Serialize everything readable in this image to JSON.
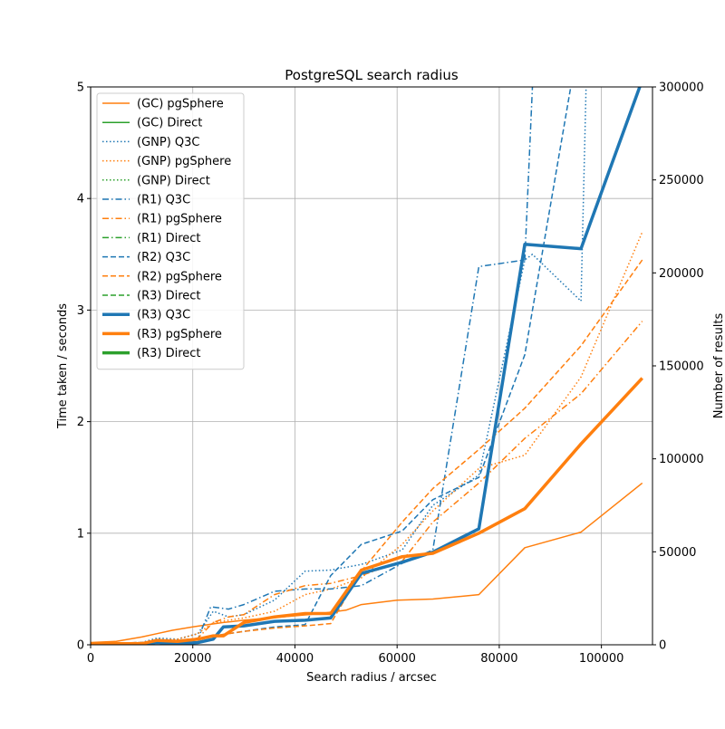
{
  "colors": {
    "Q3C": "#1f77b4",
    "pgSphere": "#ff7f0e",
    "Direct": "#2ca02c",
    "grid": "#b0b0b0"
  },
  "chart_data": {
    "type": "line",
    "title": "PostgreSQL search radius",
    "xlabel": "Search radius / arcsec",
    "ylabel": "Time taken / seconds",
    "y2label": "Number of results",
    "xlim": [
      0,
      110000
    ],
    "ylim": [
      0,
      5
    ],
    "y2lim": [
      0,
      300000
    ],
    "x_ticks": [
      0,
      20000,
      40000,
      60000,
      80000,
      100000
    ],
    "y_ticks": [
      0,
      1,
      2,
      3,
      4,
      5
    ],
    "y2_ticks": [
      0,
      50000,
      100000,
      150000,
      200000,
      250000,
      300000
    ],
    "grid": true,
    "legend_position": "upper-left",
    "series": [
      {
        "name": "(GC) pgSphere",
        "color_key": "pgSphere",
        "dash": "solid",
        "width": 1.5,
        "x": [
          0,
          5000,
          10000,
          13000,
          16000,
          20000,
          23000,
          26000,
          30000,
          35000,
          40000,
          45000,
          50000,
          53000,
          60000,
          67000,
          76000,
          85000,
          96000,
          108000
        ],
        "y": [
          0.02,
          0.03,
          0.07,
          0.1,
          0.13,
          0.16,
          0.18,
          0.2,
          0.22,
          0.24,
          0.26,
          0.28,
          0.31,
          0.36,
          0.4,
          0.41,
          0.45,
          0.87,
          1.01,
          1.45
        ]
      },
      {
        "name": "(GC) Direct",
        "color_key": "Direct",
        "dash": "solid",
        "width": 1.5,
        "x": [],
        "y": []
      },
      {
        "name": "(GNP) Q3C",
        "color_key": "Q3C",
        "dash": "dotted",
        "width": 1.5,
        "x": [
          0,
          10000,
          13000,
          17000,
          21000,
          24000,
          27000,
          30000,
          36000,
          42000,
          47000,
          53000,
          61000,
          67000,
          76000,
          85000,
          86500,
          96000,
          97000
        ],
        "y": [
          0.01,
          0.02,
          0.06,
          0.05,
          0.1,
          0.3,
          0.25,
          0.27,
          0.4,
          0.66,
          0.67,
          0.72,
          0.85,
          1.25,
          1.52,
          3.45,
          3.5,
          3.08,
          5.0
        ]
      },
      {
        "name": "(GNP) pgSphere",
        "color_key": "pgSphere",
        "dash": "dotted",
        "width": 1.5,
        "x": [
          0,
          10000,
          13000,
          17000,
          21000,
          24000,
          27000,
          30000,
          36000,
          42000,
          47000,
          53000,
          61000,
          67000,
          76000,
          85000,
          96000,
          108000
        ],
        "y": [
          0.01,
          0.02,
          0.04,
          0.05,
          0.1,
          0.2,
          0.22,
          0.24,
          0.3,
          0.45,
          0.5,
          0.6,
          0.9,
          1.2,
          1.58,
          1.7,
          2.4,
          3.7
        ]
      },
      {
        "name": "(GNP) Direct",
        "color_key": "Direct",
        "dash": "dotted",
        "width": 1.5,
        "x": [],
        "y": []
      },
      {
        "name": "(R1) Q3C",
        "color_key": "Q3C",
        "dash": "dashdot",
        "width": 1.5,
        "x": [
          0,
          10000,
          13000,
          17000,
          21000,
          23500,
          27000,
          30000,
          36000,
          42000,
          47000,
          53000,
          61000,
          67000,
          76000,
          85000,
          86500
        ],
        "y": [
          0.01,
          0.01,
          0.02,
          0.03,
          0.05,
          0.34,
          0.32,
          0.36,
          0.48,
          0.5,
          0.5,
          0.53,
          0.73,
          0.85,
          3.39,
          3.45,
          5.0
        ]
      },
      {
        "name": "(R1) pgSphere",
        "color_key": "pgSphere",
        "dash": "dashdot",
        "width": 1.5,
        "x": [
          0,
          10000,
          13000,
          17000,
          21000,
          24000,
          27000,
          30000,
          36000,
          42000,
          47000,
          53000,
          61000,
          67000,
          76000,
          85000,
          96000,
          108000
        ],
        "y": [
          0.01,
          0.02,
          0.03,
          0.04,
          0.06,
          0.2,
          0.25,
          0.27,
          0.45,
          0.53,
          0.55,
          0.62,
          0.75,
          1.1,
          1.45,
          1.85,
          2.25,
          2.9
        ]
      },
      {
        "name": "(R1) Direct",
        "color_key": "Direct",
        "dash": "dashdot",
        "width": 1.5,
        "x": [],
        "y": []
      },
      {
        "name": "(R2) Q3C",
        "color_key": "Q3C",
        "dash": "dashed",
        "width": 1.5,
        "x": [
          0,
          10000,
          13000,
          17000,
          21000,
          24000,
          27000,
          30000,
          36000,
          42000,
          47000,
          53000,
          61000,
          67000,
          76000,
          85000,
          94000
        ],
        "y": [
          0.01,
          0.02,
          0.02,
          0.03,
          0.05,
          0.08,
          0.1,
          0.12,
          0.16,
          0.18,
          0.62,
          0.9,
          1.02,
          1.3,
          1.5,
          2.6,
          5.0
        ]
      },
      {
        "name": "(R2) pgSphere",
        "color_key": "pgSphere",
        "dash": "dashed",
        "width": 1.5,
        "x": [
          0,
          10000,
          13000,
          17000,
          21000,
          24000,
          27000,
          30000,
          36000,
          42000,
          47000,
          53000,
          61000,
          67000,
          76000,
          85000,
          96000,
          108000
        ],
        "y": [
          0.01,
          0.02,
          0.03,
          0.04,
          0.05,
          0.08,
          0.1,
          0.12,
          0.15,
          0.17,
          0.19,
          0.66,
          1.1,
          1.4,
          1.75,
          2.12,
          2.68,
          3.45
        ]
      },
      {
        "name": "(R3) Direct",
        "color_key": "Direct",
        "dash": "dashed",
        "width": 1.5,
        "x": [],
        "y": []
      },
      {
        "name": "(R3) Q3C",
        "color_key": "Q3C",
        "dash": "solid",
        "width": 3.5,
        "x": [
          0,
          10000,
          13000,
          17000,
          21000,
          24000,
          26000,
          30000,
          36000,
          42000,
          47000,
          53000,
          61000,
          67000,
          76000,
          85000,
          96000,
          107500
        ],
        "y": [
          0.01,
          0.01,
          0.02,
          0.01,
          0.02,
          0.05,
          0.16,
          0.17,
          0.21,
          0.22,
          0.24,
          0.64,
          0.74,
          0.83,
          1.04,
          3.59,
          3.55,
          5.0
        ]
      },
      {
        "name": "(R3) pgSphere",
        "color_key": "pgSphere",
        "dash": "solid",
        "width": 3.5,
        "x": [
          0,
          10000,
          13000,
          17000,
          21000,
          24000,
          26000,
          30000,
          36000,
          42000,
          47000,
          53000,
          61000,
          67000,
          76000,
          85000,
          96000,
          108000
        ],
        "y": [
          0.01,
          0.01,
          0.04,
          0.03,
          0.05,
          0.08,
          0.08,
          0.2,
          0.25,
          0.28,
          0.28,
          0.67,
          0.79,
          0.82,
          1.0,
          1.22,
          1.8,
          2.39
        ]
      },
      {
        "name": "(R3) Direct",
        "color_key": "Direct",
        "dash": "solid",
        "width": 3.5,
        "x": [],
        "y": []
      }
    ]
  }
}
